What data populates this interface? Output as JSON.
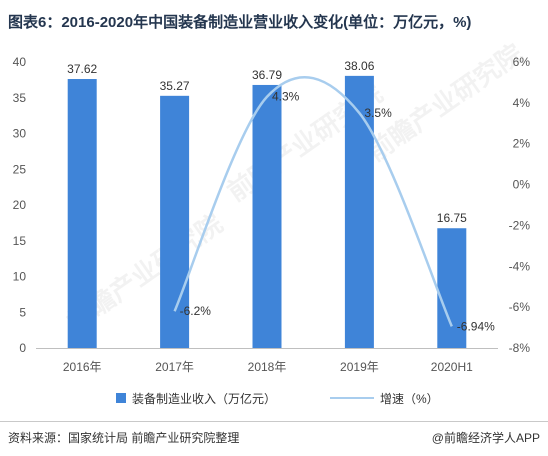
{
  "title": "图表6：2016-2020年中国装备制造业营业收入变化(单位：万亿元，%)",
  "chart_data": {
    "type": "bar",
    "categories": [
      "2016年",
      "2017年",
      "2018年",
      "2019年",
      "2020H1"
    ],
    "series": [
      {
        "name": "装备制造业收入（万亿元）",
        "type": "bar",
        "axis": "left",
        "values": [
          37.62,
          35.27,
          36.79,
          38.06,
          16.75
        ],
        "labels": [
          "37.62",
          "35.27",
          "36.79",
          "38.06",
          "16.75"
        ],
        "color": "#3f84d8"
      },
      {
        "name": "增速（%）",
        "type": "line",
        "axis": "right",
        "smooth": true,
        "values": [
          null,
          -6.2,
          4.3,
          3.5,
          -6.94
        ],
        "labels": [
          null,
          "-6.2%",
          "4.3%",
          "3.5%",
          "-6.94%"
        ],
        "color": "#a8cdee"
      }
    ],
    "y_left": {
      "min": 0,
      "max": 40,
      "ticks": [
        "0",
        "5",
        "10",
        "15",
        "20",
        "25",
        "30",
        "35",
        "40"
      ]
    },
    "y_right": {
      "min": -8,
      "max": 6,
      "ticks": [
        "-8%",
        "-6%",
        "-4%",
        "-2%",
        "0%",
        "2%",
        "4%",
        "6%"
      ]
    },
    "legend": "bottom",
    "grid": false
  },
  "source": "资料来源：国家统计局 前瞻产业研究院整理",
  "credit": "@前瞻经济学人APP",
  "watermark": "前瞻产业研究院"
}
